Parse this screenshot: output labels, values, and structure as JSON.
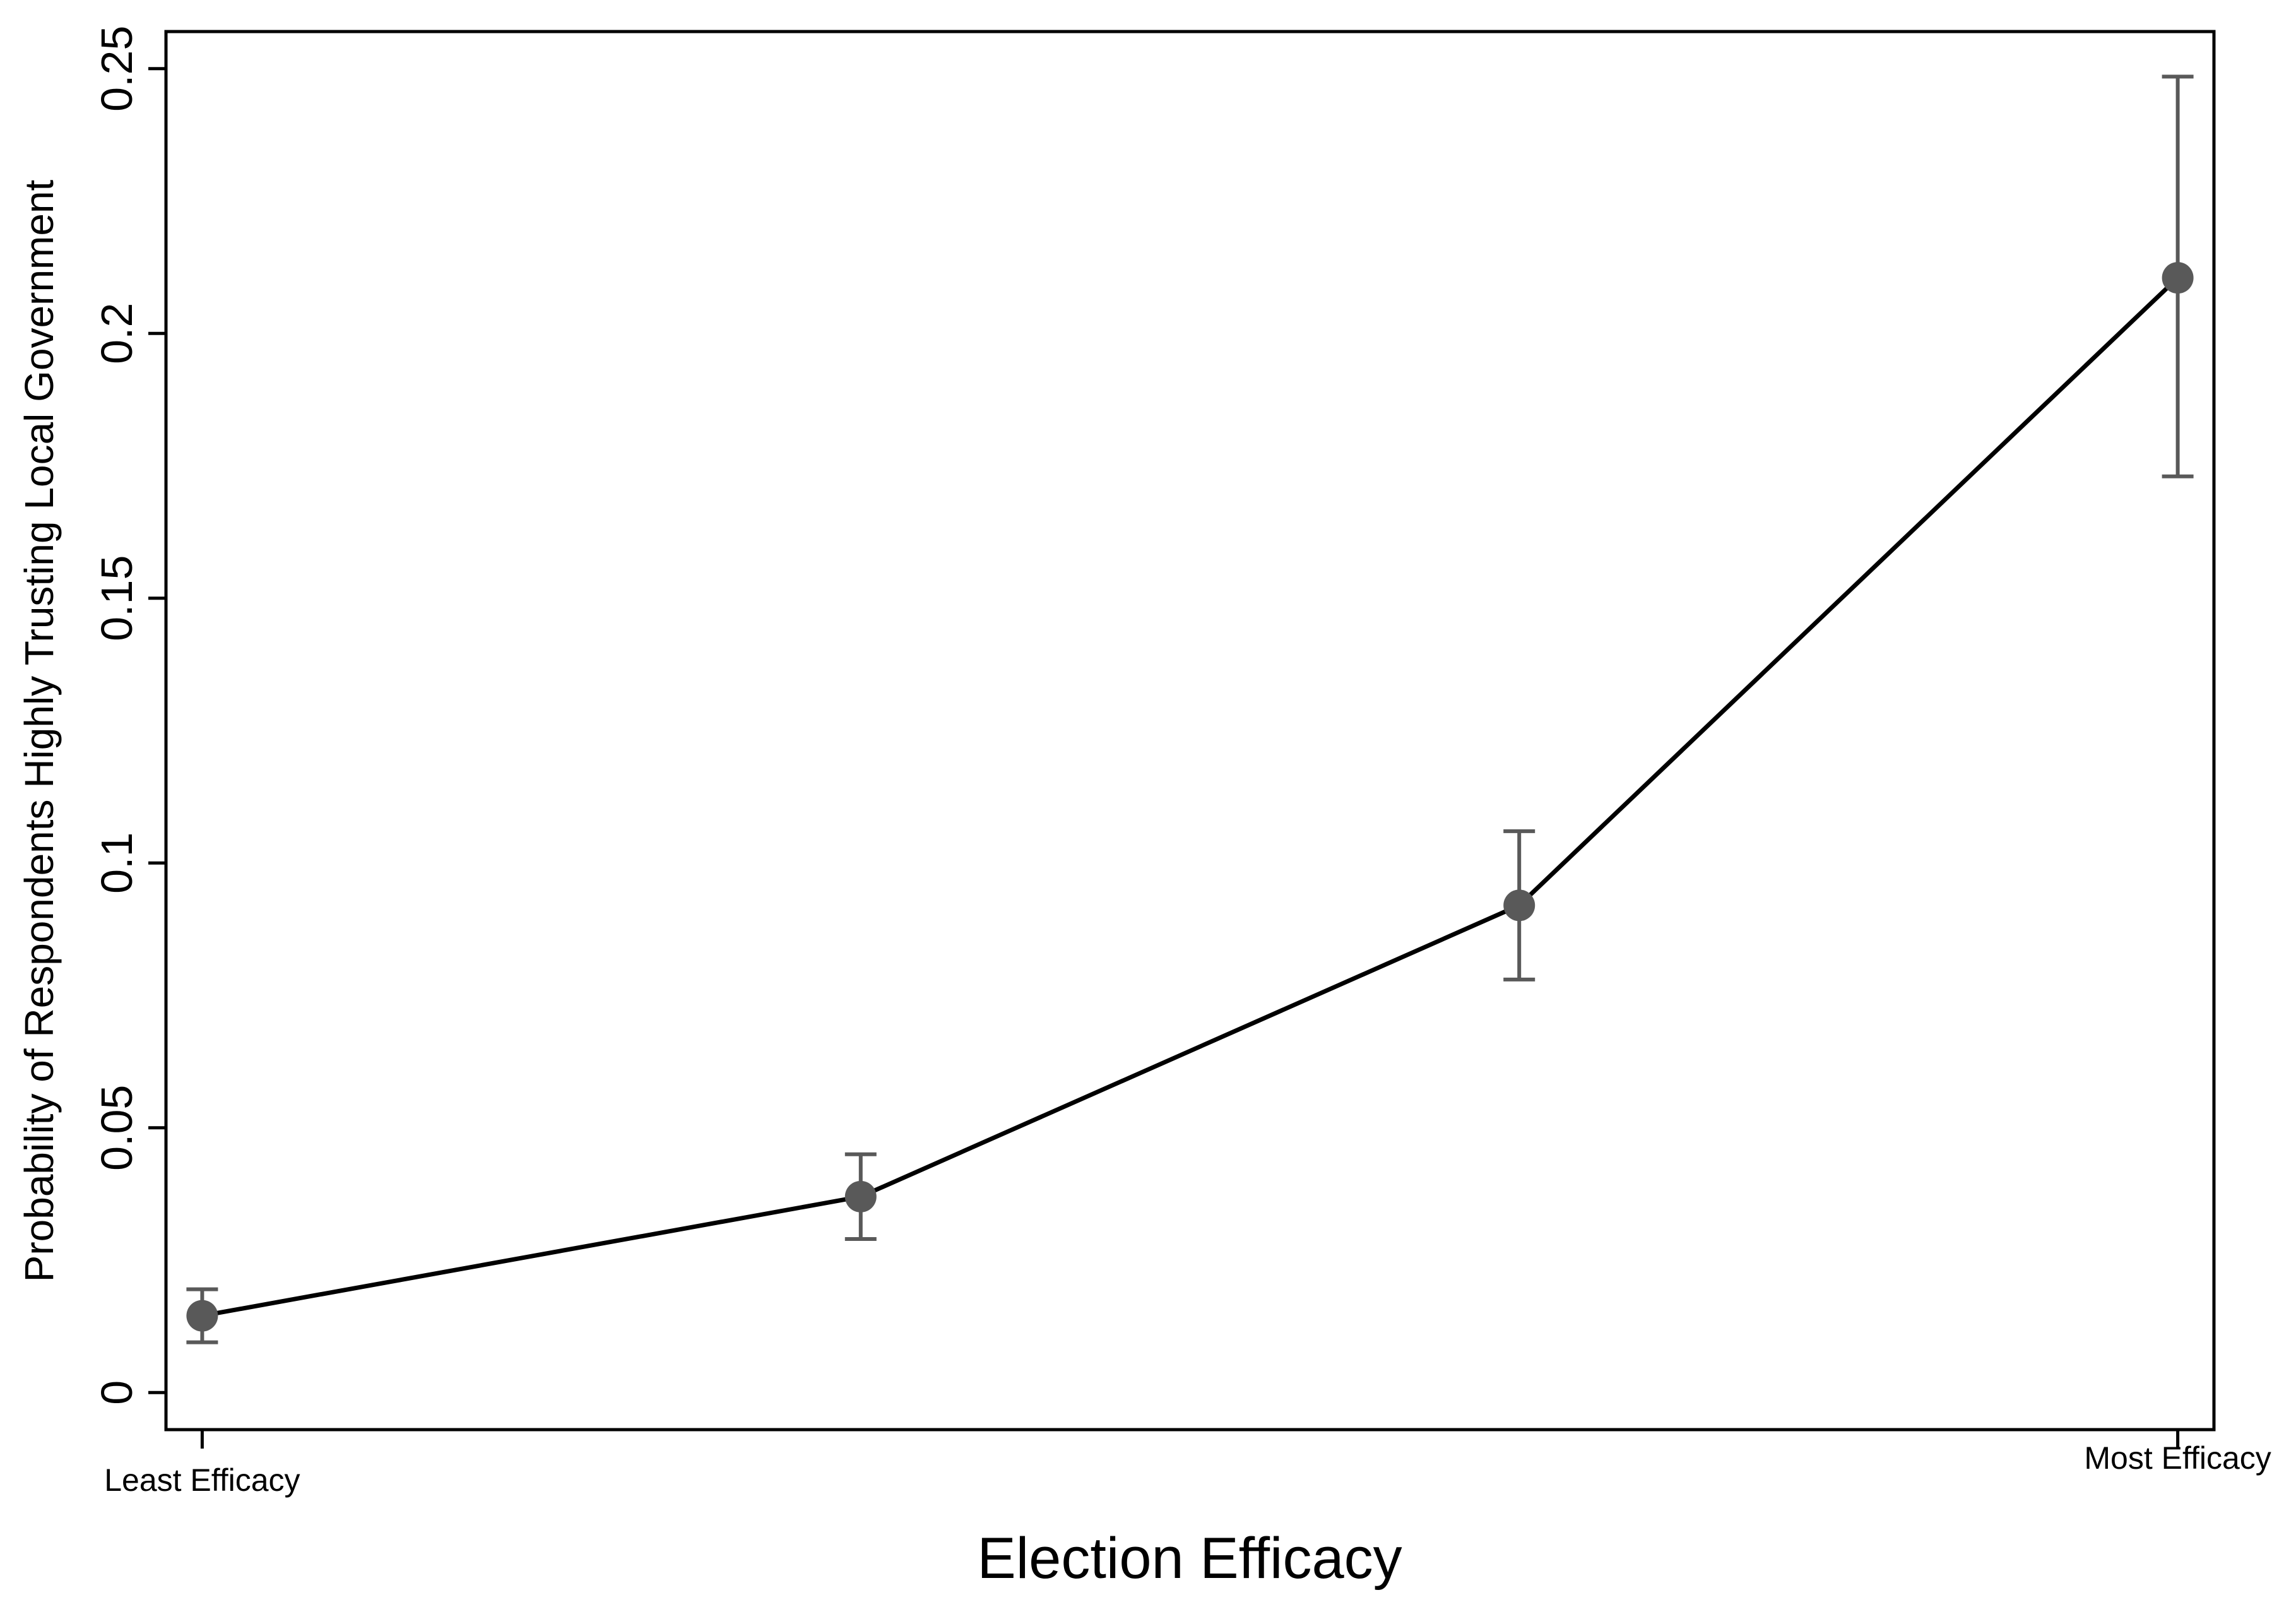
{
  "chart_data": {
    "type": "line",
    "title": "",
    "xlabel": "Election Efficacy",
    "ylabel": "Probability of Respondents Highly Trusting Local Government",
    "x": [
      1,
      2,
      3,
      4
    ],
    "x_tick_labels": [
      {
        "x": 1,
        "label": "Least Efficacy"
      },
      {
        "x": 4,
        "label": "Most Efficacy"
      }
    ],
    "y_ticks": [
      {
        "value": 0,
        "label": "0"
      },
      {
        "value": 0.05,
        "label": "0.05"
      },
      {
        "value": 0.1,
        "label": "0.1"
      },
      {
        "value": 0.15,
        "label": "0.15"
      },
      {
        "value": 0.2,
        "label": "0.2"
      },
      {
        "value": 0.25,
        "label": "0.25"
      }
    ],
    "ylim": [
      -0.007,
      0.257
    ],
    "xlim": [
      0.945,
      4.055
    ],
    "grid": false,
    "legend": "none",
    "series": [
      {
        "values": [
          0.0145,
          0.037,
          0.092,
          0.2105
        ],
        "ci_lower": [
          0.0095,
          0.029,
          0.078,
          0.173
        ],
        "ci_upper": [
          0.0195,
          0.045,
          0.106,
          0.2485
        ],
        "line_color": "#000000",
        "marker_color": "#595959",
        "errorbar_color": "#595959"
      }
    ]
  }
}
